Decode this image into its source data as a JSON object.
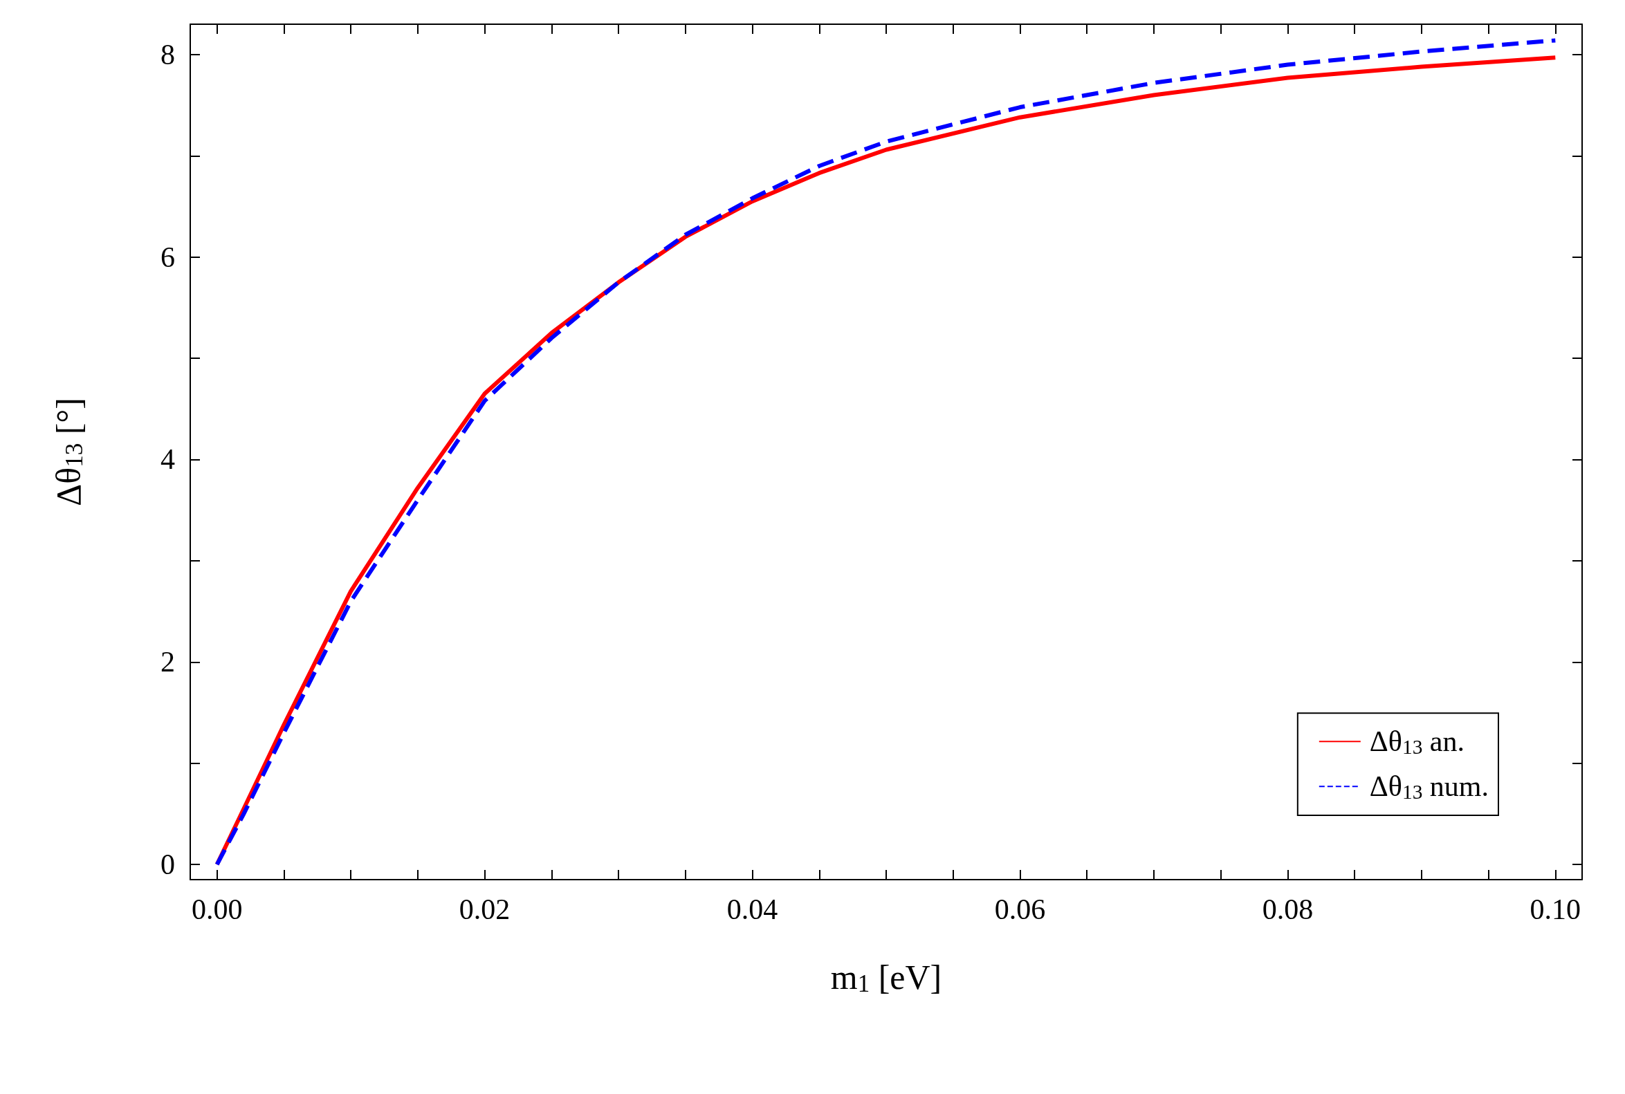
{
  "chart_data": {
    "type": "line",
    "xlabel": "m$_{1}$ [eV]",
    "ylabel": "Δθ$_{13}$ [°]",
    "xlim": [
      -0.002,
      0.102
    ],
    "ylim": [
      -0.15,
      8.3
    ],
    "xticks": [
      {
        "value": 0,
        "label": "0.00"
      },
      {
        "value": 0.005,
        "label": null
      },
      {
        "value": 0.01,
        "label": null
      },
      {
        "value": 0.015,
        "label": null
      },
      {
        "value": 0.02,
        "label": "0.02"
      },
      {
        "value": 0.025,
        "label": null
      },
      {
        "value": 0.03,
        "label": null
      },
      {
        "value": 0.035,
        "label": null
      },
      {
        "value": 0.04,
        "label": "0.04"
      },
      {
        "value": 0.045,
        "label": null
      },
      {
        "value": 0.05,
        "label": null
      },
      {
        "value": 0.055,
        "label": null
      },
      {
        "value": 0.06,
        "label": "0.06"
      },
      {
        "value": 0.065,
        "label": null
      },
      {
        "value": 0.07,
        "label": null
      },
      {
        "value": 0.075,
        "label": null
      },
      {
        "value": 0.08,
        "label": "0.08"
      },
      {
        "value": 0.085,
        "label": null
      },
      {
        "value": 0.09,
        "label": null
      },
      {
        "value": 0.095,
        "label": null
      },
      {
        "value": 0.1,
        "label": "0.10"
      }
    ],
    "yticks": [
      0,
      {
        "value": 1,
        "label": null
      },
      2,
      {
        "value": 3,
        "label": null
      },
      4,
      {
        "value": 5,
        "label": null
      },
      6,
      {
        "value": 7,
        "label": null
      },
      8
    ],
    "x": [
      0,
      0.002,
      0.005,
      0.01,
      0.015,
      0.02,
      0.025,
      0.03,
      0.035,
      0.04,
      0.045,
      0.05,
      0.06,
      0.07,
      0.08,
      0.09,
      0.1
    ],
    "series": [
      {
        "name": "Δθ$_{13}$ an.",
        "color": "#ff0000",
        "line_style": "solid",
        "values": [
          0,
          0.55,
          1.38,
          2.7,
          3.72,
          4.65,
          5.25,
          5.75,
          6.2,
          6.55,
          6.83,
          7.06,
          7.38,
          7.6,
          7.77,
          7.88,
          7.97
        ]
      },
      {
        "name": "Δθ$_{13}$ num.",
        "color": "#0000ff",
        "line_style": "dashed",
        "values": [
          0,
          0.5,
          1.3,
          2.6,
          3.6,
          4.58,
          5.2,
          5.75,
          6.22,
          6.58,
          6.9,
          7.14,
          7.48,
          7.72,
          7.9,
          8.03,
          8.14
        ]
      }
    ],
    "grid": false,
    "legend": "bottom right",
    "marker": "none"
  }
}
